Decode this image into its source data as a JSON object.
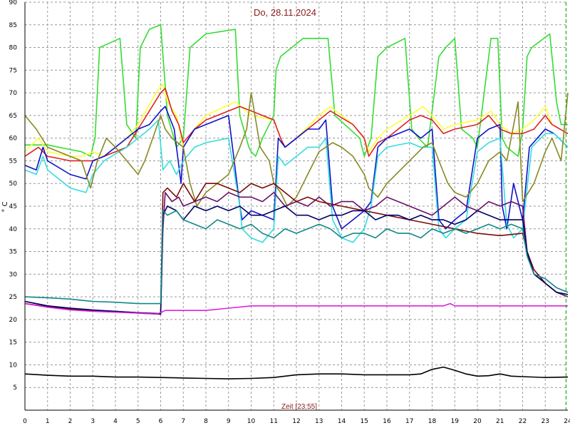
{
  "chart_data": {
    "type": "line",
    "title": "Do, 28.11.2024",
    "xlabel": "Zeit [23:55]",
    "ylabel": "° C",
    "xlim": [
      0,
      24
    ],
    "ylim": [
      0,
      90
    ],
    "x_ticks": [
      "0",
      "1",
      "2",
      "3",
      "4",
      "5",
      "6",
      "7",
      "8",
      "9",
      "10",
      "11",
      "12",
      "13",
      "14",
      "15",
      "16",
      "17",
      "18",
      "19",
      "20",
      "21",
      "22",
      "23",
      "24"
    ],
    "y_ticks": [
      "5",
      "10",
      "15",
      "20",
      "25",
      "30",
      "35",
      "40",
      "45",
      "50",
      "55",
      "60",
      "65",
      "70",
      "75",
      "80",
      "85",
      "90"
    ],
    "grid": true,
    "current_time_marker": 23.92,
    "series": [
      {
        "color": "#33dd33",
        "x": [
          0,
          1,
          1.5,
          2,
          2.5,
          2.9,
          3.1,
          3.3,
          4.2,
          4.5,
          4.9,
          5.1,
          5.5,
          6.0,
          6.3,
          6.7,
          7.0,
          7.3,
          8.0,
          9.3,
          9.5,
          9.9,
          10.0,
          10.2,
          10.5,
          11.0,
          11.1,
          11.3,
          12.3,
          13.4,
          13.7,
          14.8,
          15.0,
          15.3,
          15.6,
          16.0,
          16.8,
          17.1,
          17.4,
          17.8,
          18.3,
          18.6,
          19.0,
          19.3,
          19.8,
          20.0,
          20.6,
          20.9,
          21.1,
          21.3,
          21.8,
          22.0,
          22.2,
          22.4,
          23.2,
          23.5,
          23.7,
          24
        ],
        "y": [
          58.5,
          58.5,
          58,
          57.5,
          57,
          56,
          60,
          80,
          82,
          63,
          60,
          80,
          84,
          85,
          65,
          58,
          60,
          80,
          83,
          84,
          65,
          58,
          57,
          56,
          60,
          65,
          75,
          78,
          82,
          82,
          65,
          60,
          56,
          60,
          78,
          80,
          82,
          62,
          60,
          58,
          78,
          80,
          82,
          62,
          60,
          58,
          82,
          82,
          60,
          58,
          56,
          62,
          78,
          80,
          83,
          68,
          63,
          63
        ]
      },
      {
        "color": "#ffff33",
        "x": [
          0,
          0.6,
          1,
          2,
          2.5,
          3,
          3.5,
          4.5,
          5,
          5.8,
          6.1,
          6.3,
          6.7,
          7,
          7.5,
          8,
          9.3,
          10,
          11,
          11.3,
          11.5,
          12,
          13,
          13.5,
          14.5,
          15,
          15.2,
          15.6,
          16,
          17,
          17.6,
          18,
          18.5,
          19,
          20,
          20.6,
          21,
          21.5,
          22,
          22.5,
          23,
          23.3,
          24
        ],
        "y": [
          57,
          60,
          57,
          56,
          56,
          57,
          56,
          60,
          63,
          70,
          72,
          68,
          65,
          58,
          62,
          65,
          68,
          65,
          64,
          60,
          58,
          60,
          65,
          67,
          63,
          60,
          57,
          60,
          62,
          65,
          67,
          65,
          62,
          63,
          64,
          66,
          63,
          61,
          62,
          64,
          67,
          63,
          61
        ]
      },
      {
        "color": "#dd2222",
        "x": [
          0,
          0.6,
          1,
          2,
          3,
          3.5,
          4.5,
          5,
          6,
          6.2,
          6.5,
          6.8,
          7,
          7.5,
          8,
          9.5,
          10,
          11,
          11.3,
          11.5,
          12,
          13,
          13.5,
          14.5,
          15,
          15.2,
          15.6,
          16,
          17,
          17.5,
          18,
          18.5,
          19,
          20,
          20.5,
          21,
          21.5,
          22,
          22.5,
          23,
          23.3,
          24
        ],
        "y": [
          56,
          58,
          56,
          55,
          55,
          56,
          58,
          62,
          70,
          71,
          66,
          63,
          59,
          62,
          64,
          67,
          66,
          64,
          60,
          58,
          60,
          64,
          66,
          63,
          60,
          56,
          59,
          60,
          64,
          65,
          64,
          61,
          62,
          63,
          65,
          62,
          61,
          61,
          62,
          65,
          63,
          61
        ]
      },
      {
        "color": "#1111cc",
        "x": [
          0,
          0.5,
          0.8,
          1,
          2,
          2.7,
          3,
          3.5,
          4.5,
          5,
          5.5,
          6,
          6.2,
          6.6,
          6.9,
          7,
          7.5,
          8,
          9,
          9.5,
          9.6,
          10,
          10.5,
          11,
          11.2,
          11.5,
          12,
          12.5,
          13,
          13.3,
          13.6,
          14,
          14.5,
          15,
          15.3,
          15.6,
          16,
          17,
          17.5,
          18,
          18.3,
          18.6,
          19,
          19.5,
          20,
          20.5,
          21,
          21.1,
          21.3,
          21.6,
          22,
          22.3,
          23,
          23.4,
          24
        ],
        "y": [
          54,
          53,
          58,
          55,
          52,
          51,
          55,
          56,
          60,
          62,
          63,
          66,
          67,
          62,
          50,
          58,
          62,
          63,
          65,
          45,
          42,
          44,
          43,
          42,
          60,
          58,
          60,
          62,
          62,
          64,
          45,
          40,
          42,
          44,
          46,
          58,
          60,
          62,
          60,
          62,
          42,
          40,
          42,
          44,
          60,
          62,
          63,
          45,
          40,
          50,
          42,
          58,
          62,
          61,
          58
        ]
      },
      {
        "color": "#33dddd",
        "x": [
          0,
          0.5,
          0.8,
          1,
          2,
          2.7,
          3,
          3.5,
          4.5,
          5,
          5.5,
          5.9,
          6.1,
          6.4,
          6.7,
          7,
          7.5,
          8,
          9,
          9.5,
          9.6,
          10,
          10.5,
          11,
          11.2,
          11.5,
          12,
          12.5,
          13,
          13.3,
          13.6,
          14,
          14.5,
          15,
          15.3,
          15.6,
          16,
          17,
          17.5,
          18,
          18.3,
          18.6,
          19,
          19.5,
          20,
          20.5,
          21,
          21.3,
          21.6,
          22,
          22.4,
          23,
          23.4,
          24
        ],
        "y": [
          53,
          52,
          56,
          53,
          49,
          48,
          52,
          55,
          58,
          60,
          62,
          64,
          53,
          55,
          52,
          55,
          58,
          59,
          60,
          45,
          40,
          38,
          37,
          40,
          56,
          54,
          56,
          58,
          58,
          60,
          42,
          38,
          37,
          40,
          45,
          56,
          58,
          59,
          58,
          58,
          40,
          38,
          40,
          42,
          57,
          59,
          60,
          41,
          38,
          40,
          58,
          61,
          61,
          58
        ]
      },
      {
        "color": "#888822",
        "x": [
          0,
          0.5,
          1,
          1.5,
          2,
          2.5,
          2.9,
          3.2,
          3.6,
          4,
          4.5,
          5,
          5.3,
          6,
          6.2,
          6.5,
          7,
          7.3,
          7.6,
          8,
          9,
          9.5,
          9.8,
          10,
          10.4,
          10.8,
          11,
          11.3,
          11.6,
          12,
          12.5,
          13,
          13.6,
          14,
          14.5,
          15,
          15.2,
          15.6,
          16,
          17,
          17.6,
          18,
          18.3,
          18.7,
          19,
          19.5,
          20,
          20.5,
          21,
          21.3,
          21.8,
          22,
          22.5,
          23,
          23.3,
          23.7,
          24
        ],
        "y": [
          65,
          62,
          58,
          57,
          56,
          55,
          49,
          55,
          60,
          58,
          55,
          52,
          55,
          65,
          62,
          60,
          58,
          50,
          45,
          48,
          52,
          58,
          62,
          70,
          58,
          55,
          50,
          48,
          45,
          47,
          52,
          57,
          59,
          58,
          56,
          52,
          49,
          47,
          50,
          55,
          58,
          59,
          55,
          50,
          48,
          47,
          50,
          55,
          57,
          55,
          68,
          46,
          50,
          57,
          60,
          55,
          70
        ]
      },
      {
        "color": "#6a0f6a",
        "x": [
          0,
          1,
          2,
          3,
          4,
          5,
          6,
          6.1,
          6.2,
          6.5,
          6.8,
          7,
          7.5,
          8,
          8.5,
          9,
          9.5,
          10,
          10.5,
          11,
          11.5,
          12,
          12.5,
          13,
          13.5,
          14,
          14.5,
          15,
          15.5,
          16,
          16.5,
          17,
          17.5,
          18,
          18.5,
          19,
          19.5,
          20,
          20.5,
          21,
          21.5,
          22,
          22.2,
          22.5,
          23,
          23.5,
          24
        ],
        "y": [
          24,
          23,
          22.5,
          22,
          21.8,
          21.5,
          21.3,
          40,
          48,
          46,
          47,
          45,
          46,
          47,
          46,
          48,
          47,
          47,
          46,
          48,
          45,
          46,
          45,
          47,
          45,
          46,
          46,
          44,
          45,
          47,
          46,
          45,
          44,
          43,
          45,
          47,
          45,
          44,
          46,
          45,
          46,
          45,
          35,
          30,
          28,
          26,
          25
        ]
      },
      {
        "color": "#7a0a0a",
        "x": [
          0,
          1,
          2,
          3,
          4,
          5,
          6,
          6.1,
          6.3,
          6.7,
          7,
          7.5,
          8,
          8.5,
          9,
          9.5,
          10,
          10.5,
          11,
          11.5,
          12,
          12.5,
          13,
          14,
          15,
          16,
          17,
          18,
          19,
          20,
          21,
          22,
          22.2,
          22.5,
          23,
          23.5,
          24
        ],
        "y": [
          23.5,
          22.8,
          22.3,
          22,
          21.7,
          21.4,
          21.2,
          48,
          49,
          47,
          50,
          46,
          50,
          50,
          49,
          48,
          50,
          49,
          50,
          48,
          46,
          47,
          46,
          45,
          44,
          43,
          42,
          41,
          40,
          39,
          38.5,
          39,
          35,
          31,
          28,
          26,
          25.5
        ]
      },
      {
        "color": "#000066",
        "x": [
          0,
          1,
          2,
          3,
          4,
          5,
          6,
          6.1,
          6.3,
          6.7,
          7,
          7.5,
          8,
          8.5,
          9,
          9.5,
          10,
          10.5,
          11,
          11.5,
          12,
          12.5,
          13,
          13.5,
          14,
          14.5,
          15,
          15.5,
          16,
          16.5,
          17,
          17.5,
          18,
          18.5,
          19,
          19.5,
          20,
          20.5,
          21,
          21.5,
          22,
          22.2,
          22.5,
          23,
          23.5,
          24
        ],
        "y": [
          24,
          23,
          22.5,
          22.1,
          21.8,
          21.5,
          21.2,
          43,
          45,
          44,
          42,
          45,
          44,
          45,
          44,
          45,
          43,
          43,
          44,
          45,
          43,
          43,
          42,
          43,
          43,
          44,
          44,
          42,
          43,
          43,
          42,
          43,
          42,
          42,
          41,
          42,
          44,
          43,
          42,
          42,
          42,
          35,
          30,
          28,
          26,
          25.5
        ]
      },
      {
        "color": "#118888",
        "x": [
          0,
          1,
          2,
          3,
          4,
          5,
          6,
          6.1,
          6.3,
          6.7,
          7,
          7.5,
          8,
          8.5,
          9,
          9.5,
          10,
          10.5,
          11,
          11.5,
          12,
          12.5,
          13,
          13.5,
          14,
          14.5,
          15,
          15.5,
          16,
          16.5,
          17,
          17.5,
          18,
          18.5,
          19,
          19.5,
          20,
          20.5,
          21,
          21.5,
          22,
          22.2,
          22.5,
          23,
          23.5,
          24
        ],
        "y": [
          25,
          24.8,
          24.5,
          24,
          23.8,
          23.5,
          23.5,
          44,
          43,
          44,
          42,
          41,
          40,
          42,
          41,
          40,
          41,
          39,
          38,
          40,
          39,
          40,
          41,
          40,
          38,
          39,
          39,
          38,
          40,
          39,
          39,
          38,
          40,
          39,
          40,
          39,
          40,
          41,
          40,
          41,
          40,
          34,
          30,
          29,
          27,
          26
        ]
      },
      {
        "color": "#dd22dd",
        "x": [
          0,
          1,
          2,
          3,
          4,
          5,
          5.8,
          6,
          6.2,
          7,
          8,
          9,
          10,
          11,
          12,
          13,
          14,
          15,
          16,
          17,
          18,
          18.5,
          18.8,
          19,
          20,
          21,
          22,
          23,
          24
        ],
        "y": [
          23.5,
          22.7,
          22.1,
          21.8,
          21.6,
          21.4,
          21.2,
          21.5,
          22,
          22,
          22,
          22.5,
          23,
          23,
          23,
          23,
          23,
          23,
          23,
          23,
          23,
          23,
          23.5,
          23,
          23,
          23,
          23,
          23,
          23
        ]
      },
      {
        "color": "#000000",
        "x": [
          0,
          1,
          2,
          3,
          4,
          5,
          6,
          7,
          8,
          9,
          10,
          11,
          12,
          13,
          14,
          15,
          16,
          17,
          17.5,
          18,
          18.5,
          19,
          19.5,
          20,
          20.5,
          21,
          21.5,
          22,
          23,
          24
        ],
        "y": [
          8,
          7.7,
          7.5,
          7.5,
          7.3,
          7.3,
          7.2,
          7.1,
          7,
          6.9,
          7,
          7.2,
          7.8,
          8,
          8,
          7.8,
          7.8,
          7.8,
          8,
          9,
          9.5,
          8.8,
          8,
          7.5,
          7.6,
          8,
          7.5,
          7.4,
          7.2,
          7.3
        ]
      }
    ]
  }
}
